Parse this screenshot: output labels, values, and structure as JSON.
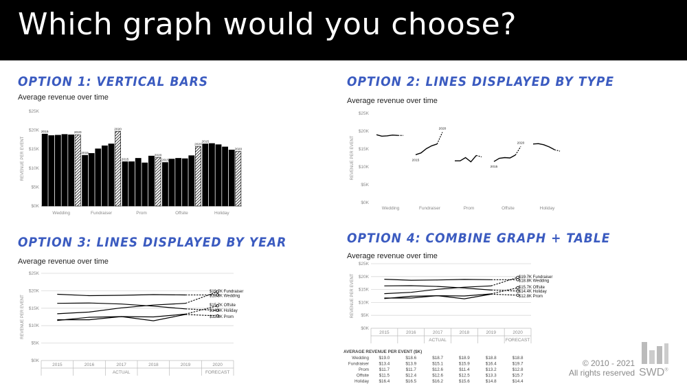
{
  "header": {
    "title": "Which graph would you choose?"
  },
  "options": [
    {
      "title": "OPTION 1: VERTICAL BARS",
      "subtitle": "Average revenue over time"
    },
    {
      "title": "OPTION 2: LINES DISPLAYED BY TYPE",
      "subtitle": "Average revenue over time"
    },
    {
      "title": "OPTION 3: LINES DISPLAYED BY YEAR",
      "subtitle": "Average revenue over time"
    },
    {
      "title": "OPTION 4: COMBINE GRAPH + TABLE",
      "subtitle": "Average revenue over time"
    }
  ],
  "footer": {
    "copyright_line1": "© 2010 - 2021",
    "copyright_line2": "All rights reserved",
    "logo_text": "SWD",
    "logo_mark": "®"
  },
  "chart_data": [
    {
      "type": "bar",
      "title": "Average revenue over time",
      "ylabel": "REVENUE PER EVENT",
      "yticks": [
        "$0K",
        "$5K",
        "$10K",
        "$15K",
        "$20K",
        "$25K"
      ],
      "ylim": [
        0,
        25
      ],
      "categories": [
        "Wedding",
        "Fundraiser",
        "Prom",
        "Offsite",
        "Holiday"
      ],
      "years": [
        "2015",
        "2016",
        "2017",
        "2018",
        "2019",
        "2020"
      ],
      "values": [
        [
          19.0,
          18.6,
          18.7,
          18.9,
          18.8,
          18.8
        ],
        [
          13.4,
          13.9,
          15.1,
          15.9,
          16.4,
          19.7
        ],
        [
          11.7,
          11.7,
          12.6,
          11.4,
          13.2,
          12.8
        ],
        [
          11.5,
          12.4,
          12.6,
          12.5,
          13.3,
          15.7
        ],
        [
          16.4,
          16.5,
          16.2,
          15.6,
          14.8,
          14.4
        ]
      ],
      "bar_labels": [
        {
          "cat": 0,
          "year": 0,
          "text": "2015"
        },
        {
          "cat": 0,
          "year": 5,
          "text": "2020"
        },
        {
          "cat": 1,
          "year": 0,
          "text": "2015"
        },
        {
          "cat": 1,
          "year": 5,
          "text": "2020"
        },
        {
          "cat": 2,
          "year": 0,
          "text": "2015"
        },
        {
          "cat": 2,
          "year": 5,
          "text": "2020"
        },
        {
          "cat": 3,
          "year": 0,
          "text": "2015"
        },
        {
          "cat": 3,
          "year": 5,
          "text": "2020"
        },
        {
          "cat": 4,
          "year": 0,
          "text": "2015"
        },
        {
          "cat": 4,
          "year": 5,
          "text": "2020"
        }
      ],
      "highlight": "2020 bars shown with diagonal hatch"
    },
    {
      "type": "line",
      "title": "Average revenue over time",
      "ylabel": "REVENUE PER EVENT",
      "yticks": [
        "$0K",
        "$5K",
        "$10K",
        "$15K",
        "$20K",
        "$25K"
      ],
      "ylim": [
        0,
        25
      ],
      "categories": [
        "Wedding",
        "Fundraiser",
        "Prom",
        "Offsite",
        "Holiday"
      ],
      "series_values": [
        [
          19.0,
          18.6,
          18.7,
          18.9,
          18.8,
          18.8
        ],
        [
          13.4,
          13.9,
          15.1,
          15.9,
          16.4,
          19.7
        ],
        [
          11.7,
          11.7,
          12.6,
          11.4,
          13.2,
          12.8
        ],
        [
          11.5,
          12.4,
          12.6,
          12.5,
          13.3,
          15.7
        ],
        [
          16.4,
          16.5,
          16.2,
          15.6,
          14.8,
          14.4
        ]
      ],
      "annotations": [
        {
          "cat": 1,
          "point": 0,
          "text": "2015"
        },
        {
          "cat": 1,
          "point": 5,
          "text": "2020"
        },
        {
          "cat": 3,
          "point": 0,
          "text": "2015"
        },
        {
          "cat": 3,
          "point": 5,
          "text": "2020"
        }
      ]
    },
    {
      "type": "line",
      "title": "Average revenue over time",
      "ylabel": "REVENUE PER EVENT",
      "yticks": [
        "$0K",
        "$5K",
        "$10K",
        "$15K",
        "$20K",
        "$25K"
      ],
      "ylim": [
        0,
        25
      ],
      "x": [
        "2015",
        "2016",
        "2017",
        "2018",
        "2019",
        "2020"
      ],
      "x_groups": [
        "ACTUAL",
        "FORECAST"
      ],
      "series": [
        {
          "name": "Fundraiser",
          "values": [
            13.4,
            13.9,
            15.1,
            15.9,
            16.4,
            19.7
          ],
          "end_label": "$19.7K Fundraiser"
        },
        {
          "name": "Wedding",
          "values": [
            19.0,
            18.6,
            18.7,
            18.9,
            18.8,
            18.8
          ],
          "end_label": "$18.8K Wedding"
        },
        {
          "name": "Offsite",
          "values": [
            11.5,
            12.4,
            12.6,
            12.5,
            13.3,
            15.7
          ],
          "end_label": "$15.7K Offsite"
        },
        {
          "name": "Holiday",
          "values": [
            16.4,
            16.5,
            16.2,
            15.6,
            14.8,
            14.4
          ],
          "end_label": "$14.4K Holiday"
        },
        {
          "name": "Prom",
          "values": [
            11.7,
            11.7,
            12.6,
            11.4,
            13.2,
            12.8
          ],
          "end_label": "$12.8K Prom"
        }
      ]
    },
    {
      "type": "line",
      "title": "Average revenue over time",
      "ylabel": "REVENUE PER EVENT",
      "yticks": [
        "$0K",
        "$5K",
        "$10K",
        "$15K",
        "$20K",
        "$25K"
      ],
      "ylim": [
        0,
        25
      ],
      "x": [
        "2015",
        "2016",
        "2017",
        "2018",
        "2019",
        "2020"
      ],
      "x_groups": [
        "ACTUAL",
        "FORECAST"
      ],
      "series": [
        {
          "name": "Fundraiser",
          "values": [
            13.4,
            13.9,
            15.1,
            15.9,
            16.4,
            19.7
          ],
          "end_label": "$19.7K Fundraiser"
        },
        {
          "name": "Wedding",
          "values": [
            19.0,
            18.6,
            18.7,
            18.9,
            18.8,
            18.8
          ],
          "end_label": "$18.8K Wedding"
        },
        {
          "name": "Offsite",
          "values": [
            11.5,
            12.4,
            12.6,
            12.5,
            13.3,
            15.7
          ],
          "end_label": "$15.7K Offsite"
        },
        {
          "name": "Holiday",
          "values": [
            16.4,
            16.5,
            16.2,
            15.6,
            14.8,
            14.4
          ],
          "end_label": "$14.4K Holiday"
        },
        {
          "name": "Prom",
          "values": [
            11.7,
            11.7,
            12.6,
            11.4,
            13.2,
            12.8
          ],
          "end_label": "$12.8K Prom"
        }
      ],
      "table": {
        "title": "AVERAGE REVENUE PER EVENT ($K)",
        "rows": [
          {
            "label": "Wedding",
            "cells": [
              "$19.0",
              "$18.6",
              "$18.7",
              "$18.9",
              "$18.8",
              "$18.8"
            ]
          },
          {
            "label": "Fundraiser",
            "cells": [
              "$13.4",
              "$13.9",
              "$15.1",
              "$15.9",
              "$16.4",
              "$19.7"
            ]
          },
          {
            "label": "Prom",
            "cells": [
              "$11.7",
              "$11.7",
              "$12.6",
              "$11.4",
              "$13.2",
              "$12.8"
            ]
          },
          {
            "label": "Offsite",
            "cells": [
              "$11.5",
              "$12.4",
              "$12.6",
              "$12.5",
              "$13.3",
              "$15.7"
            ]
          },
          {
            "label": "Holiday",
            "cells": [
              "$16.4",
              "$16.5",
              "$16.2",
              "$15.6",
              "$14.8",
              "$14.4"
            ]
          }
        ]
      }
    }
  ]
}
